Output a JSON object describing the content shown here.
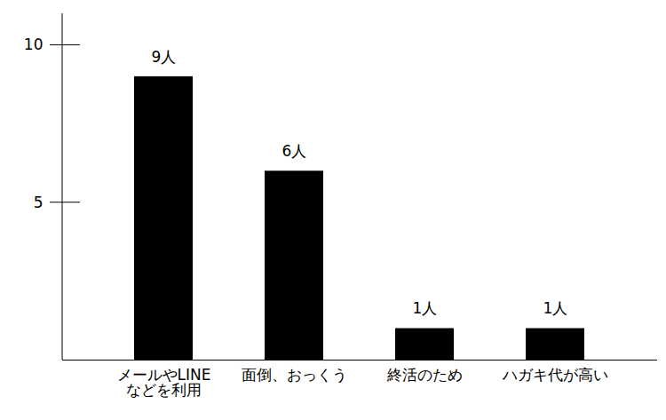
{
  "chart_data": {
    "type": "bar",
    "categories": [
      "メールやLINEなどを利用",
      "面倒、おっくう",
      "終活のため",
      "ハガキ代が高い"
    ],
    "values": [
      9,
      6,
      1,
      1
    ],
    "value_labels": [
      "9人",
      "6人",
      "1人",
      "1人"
    ],
    "color": "#000000",
    "ylim": [
      0,
      11
    ],
    "yticks": [
      5,
      10
    ],
    "grid": false,
    "data_labels": true
  }
}
